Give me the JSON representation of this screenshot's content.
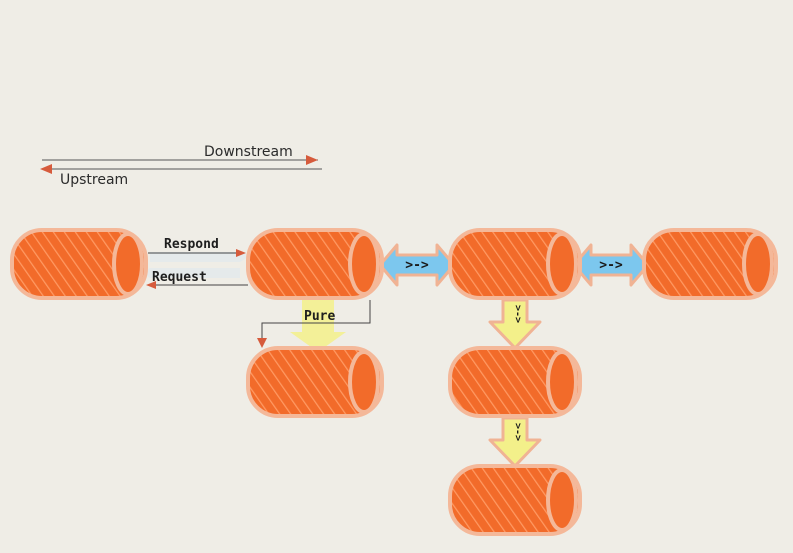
{
  "legend": {
    "downstream_label": "Downstream",
    "upstream_label": "Upstream"
  },
  "edges": {
    "respond_label": "Respond",
    "request_label": "Request",
    "pure_label": "Pure",
    "compose_right_1": ">->",
    "compose_right_2": ">->",
    "compose_down_1": ">->",
    "compose_down_2": ">->"
  },
  "colors": {
    "pipe_fill": "#f26b2a",
    "pipe_outline": "#f4b899",
    "pipe_hatch": "#ffb48a",
    "compose_arrow_fill": "#7cc7ee",
    "pure_arrow_fill": "#f3f08a",
    "legend_arrow": "#d65b3c",
    "background": "#efede6"
  },
  "icons": {
    "pipe": "pipe-cylinder-icon",
    "compose": "double-arrow-icon"
  }
}
